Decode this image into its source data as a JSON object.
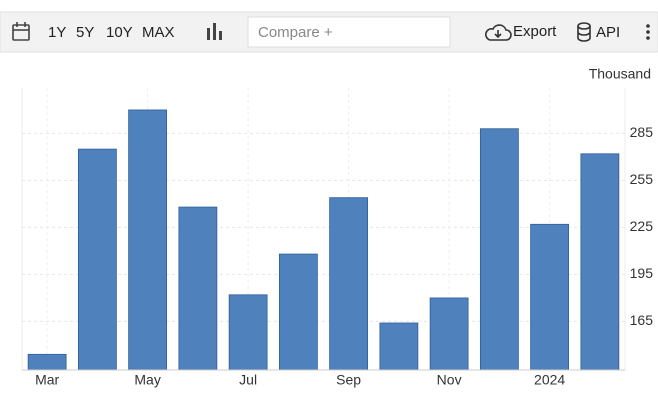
{
  "toolbar": {
    "ranges": [
      "1Y",
      "5Y",
      "10Y",
      "MAX"
    ],
    "compare": "Compare +",
    "export": "Export",
    "api": "API"
  },
  "chart_data": {
    "type": "bar",
    "unit": "Thousand",
    "categories": [
      "Mar",
      null,
      "May",
      null,
      "Jul",
      null,
      "Sep",
      null,
      "Nov",
      null,
      "2024",
      null
    ],
    "values": [
      144,
      275,
      300,
      238,
      182,
      208,
      244,
      164,
      180,
      288,
      227,
      272
    ],
    "color": "#4f81bd",
    "ylim": [
      134,
      314
    ],
    "yticks": [
      165,
      195,
      225,
      255,
      285
    ],
    "grid": true
  }
}
